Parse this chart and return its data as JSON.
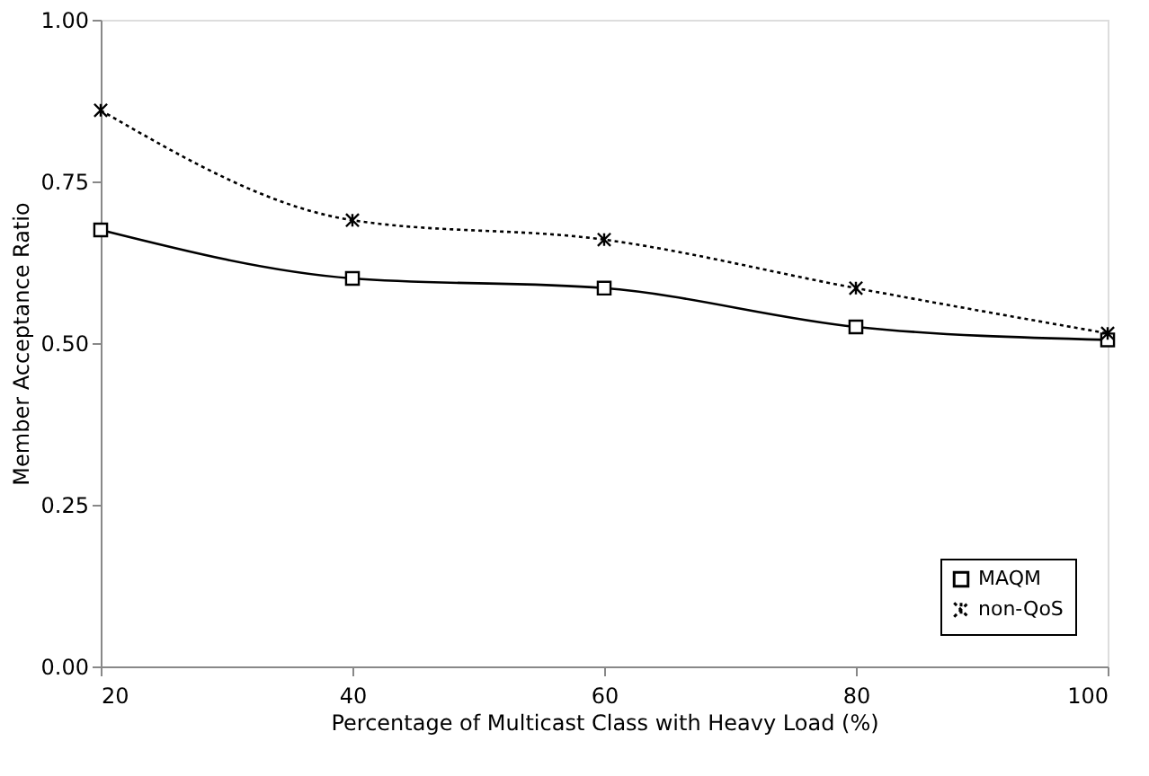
{
  "chart_data": {
    "type": "line",
    "xlabel": "Percentage of Multicast Class with Heavy Load (%)",
    "ylabel": "Member Acceptance Ratio",
    "x": [
      20,
      40,
      60,
      80,
      100
    ],
    "series": [
      {
        "name": "MAQM",
        "color": "#000000",
        "values": [
          0.675,
          0.6,
          0.585,
          0.525,
          0.505
        ],
        "marker": "square",
        "line_style": "solid"
      },
      {
        "name": "non-QoS",
        "color": "#000000",
        "values": [
          0.86,
          0.69,
          0.66,
          0.585,
          0.515
        ],
        "marker": "cross",
        "line_style": "dotted"
      }
    ],
    "xlim": [
      20,
      100
    ],
    "xticks": [
      20,
      40,
      60,
      80,
      100
    ],
    "ylim": [
      0,
      1
    ],
    "yticks": [
      {
        "value": 0,
        "label": "0.00"
      },
      {
        "value": 0.25,
        "label": "0.25"
      },
      {
        "value": 0.5,
        "label": "0.50"
      },
      {
        "value": 0.75,
        "label": "0.75"
      },
      {
        "value": 1,
        "label": "1.00"
      }
    ],
    "grid": false,
    "legend": "bottom right"
  }
}
